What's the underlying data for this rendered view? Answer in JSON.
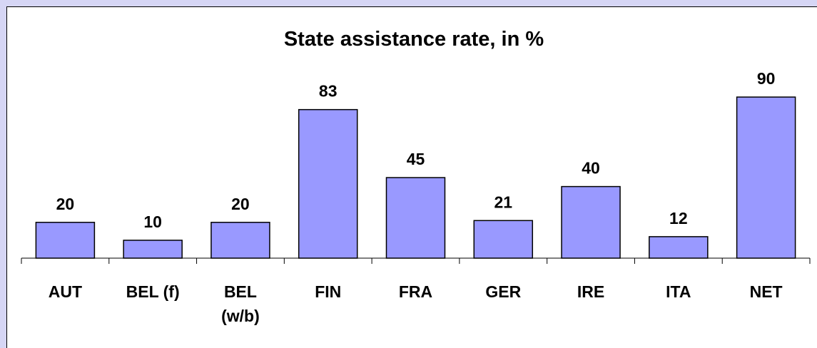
{
  "chart_data": {
    "type": "bar",
    "title": "State assistance rate, in %",
    "categories": [
      "AUT",
      "BEL (f)",
      "BEL (w/b)",
      "FIN",
      "FRA",
      "GER",
      "IRE",
      "ITA",
      "NET"
    ],
    "values": [
      20,
      10,
      20,
      83,
      45,
      21,
      40,
      12,
      90
    ],
    "color": "#9999ff"
  }
}
